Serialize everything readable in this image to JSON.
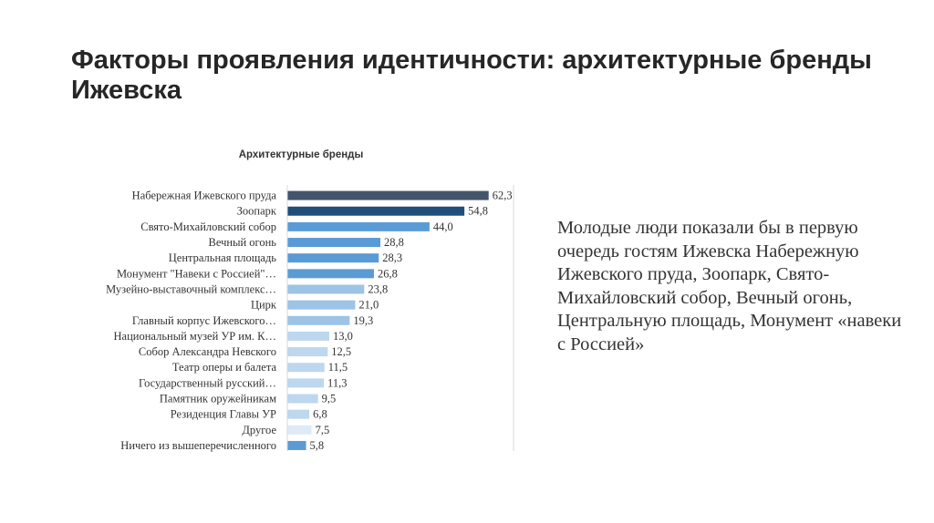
{
  "slide": {
    "title": "Факторы проявления идентичности: архитектурные бренды Ижевска",
    "body_text": "Молодые люди показали бы в первую очередь гостям Ижевска Набережную Ижевского пруда, Зоопарк, Свято-Михайловский собор, Вечный огонь, Центральную площадь, Монумент «навеки с Россией»"
  },
  "chart_data": {
    "type": "bar",
    "orientation": "horizontal",
    "title": "Архитектурные бренды",
    "categories": [
      "Набережная Ижевского пруда",
      "Зоопарк",
      "Свято-Михайловский собор",
      "Вечный огонь",
      "Центральная площадь",
      "Монумент \"Навеки с Россией\"…",
      "Музейно-выставочный комплекс…",
      "Цирк",
      "Главный корпус Ижевского…",
      "Национальный музей УР им. К…",
      "Собор Александра Невского",
      "Театр оперы и балета",
      "Государственный русский…",
      "Памятник оружейникам",
      "Резиденция Главы УР",
      "Другое",
      "Ничего из вышеперечисленного"
    ],
    "values": [
      62.3,
      54.8,
      44.0,
      28.8,
      28.3,
      26.8,
      23.8,
      21.0,
      19.3,
      13.0,
      12.5,
      11.5,
      11.3,
      9.5,
      6.8,
      7.5,
      5.8
    ],
    "value_labels": [
      "62,3",
      "54,8",
      "44,0",
      "28,8",
      "28,3",
      "26,8",
      "23,8",
      "21,0",
      "19,3",
      "13,0",
      "12,5",
      "11,5",
      "11,3",
      "9,5",
      "6,8",
      "7,5",
      "5,8"
    ],
    "colors": [
      "#44546a",
      "#1f4e79",
      "#5b9bd5",
      "#5b9bd5",
      "#5b9bd5",
      "#5b9bd5",
      "#9dc3e6",
      "#9dc3e6",
      "#9dc3e6",
      "#bdd7ee",
      "#bdd7ee",
      "#bdd7ee",
      "#bdd7ee",
      "#bdd7ee",
      "#bdd7ee",
      "#deebf7",
      "#5b9bd5"
    ],
    "xlim": [
      0,
      70
    ],
    "grid": false,
    "legend": "none"
  }
}
